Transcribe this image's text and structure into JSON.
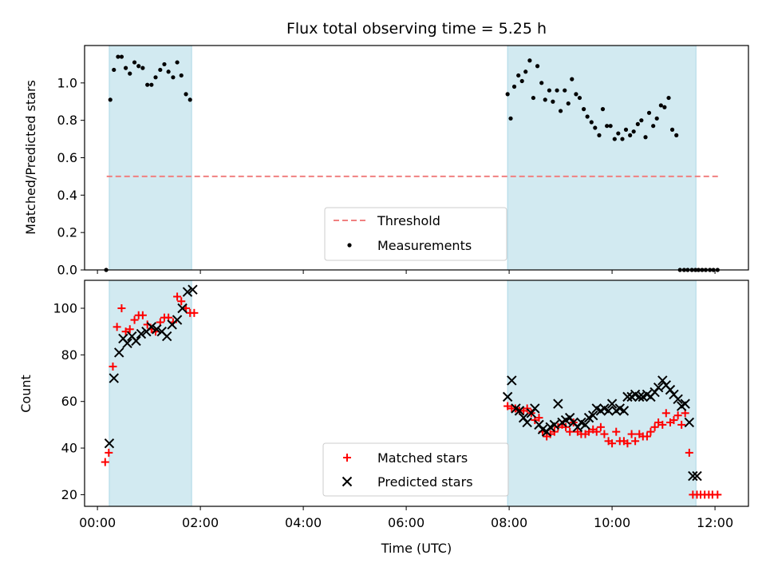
{
  "chart_data": [
    {
      "type": "scatter",
      "title": "Flux total observing time = 5.25 h",
      "xlabel": "",
      "ylabel": "Matched/Predicted stars",
      "xlim": [
        -0.25,
        12.65
      ],
      "ylim": [
        0,
        1.2
      ],
      "yticks": [
        0.0,
        0.2,
        0.4,
        0.6,
        0.8,
        1.0
      ],
      "ytick_labels": [
        "0.0",
        "0.2",
        "0.4",
        "0.6",
        "0.8",
        "1.0"
      ],
      "shaded_intervals": [
        [
          0.23,
          1.83
        ],
        [
          7.97,
          11.63
        ]
      ],
      "threshold": {
        "name": "Threshold",
        "y": 0.5,
        "x": [
          0.18,
          12.1
        ],
        "color": "#f08080"
      },
      "series": [
        {
          "name": "Measurements",
          "color": "#000000",
          "x": [
            0.17,
            0.25,
            0.32,
            0.4,
            0.47,
            0.55,
            0.63,
            0.72,
            0.8,
            0.88,
            0.97,
            1.05,
            1.13,
            1.22,
            1.3,
            1.38,
            1.47,
            1.55,
            1.63,
            1.72,
            1.8,
            7.97,
            8.03,
            8.1,
            8.18,
            8.25,
            8.32,
            8.4,
            8.47,
            8.55,
            8.63,
            8.7,
            8.78,
            8.85,
            8.93,
            9.0,
            9.08,
            9.15,
            9.22,
            9.3,
            9.37,
            9.45,
            9.52,
            9.6,
            9.67,
            9.75,
            9.82,
            9.9,
            9.97,
            10.05,
            10.12,
            10.2,
            10.27,
            10.35,
            10.42,
            10.5,
            10.57,
            10.65,
            10.72,
            10.8,
            10.87,
            10.95,
            11.02,
            11.1,
            11.17,
            11.25,
            11.32,
            11.4,
            11.47,
            11.55,
            11.62,
            11.68,
            11.75,
            11.82,
            11.9,
            11.97,
            12.05
          ],
          "y": [
            0.0,
            0.91,
            1.07,
            1.14,
            1.14,
            1.08,
            1.05,
            1.11,
            1.09,
            1.08,
            0.99,
            0.99,
            1.03,
            1.07,
            1.1,
            1.06,
            1.03,
            1.11,
            1.04,
            0.94,
            0.91,
            0.94,
            0.81,
            0.98,
            1.04,
            1.01,
            1.06,
            1.12,
            0.92,
            1.09,
            1.0,
            0.91,
            0.96,
            0.9,
            0.96,
            0.85,
            0.96,
            0.89,
            1.02,
            0.94,
            0.92,
            0.86,
            0.82,
            0.79,
            0.76,
            0.72,
            0.86,
            0.77,
            0.77,
            0.7,
            0.73,
            0.7,
            0.75,
            0.72,
            0.74,
            0.78,
            0.8,
            0.71,
            0.84,
            0.77,
            0.81,
            0.88,
            0.87,
            0.92,
            0.75,
            0.72,
            0.0,
            0.0,
            0.0,
            0.0,
            0.0,
            0.0,
            0.0,
            0.0,
            0.0,
            0.0,
            0.0
          ]
        }
      ],
      "legend": {
        "entries": [
          "Threshold",
          "Measurements"
        ],
        "position": "lower-center"
      }
    },
    {
      "type": "scatter",
      "title": "",
      "xlabel": "Time (UTC)",
      "ylabel": "Count",
      "xlim": [
        -0.25,
        12.65
      ],
      "ylim": [
        15,
        112
      ],
      "yticks": [
        20,
        40,
        60,
        80,
        100
      ],
      "ytick_labels": [
        "20",
        "40",
        "60",
        "80",
        "100"
      ],
      "xticks": [
        0,
        2,
        4,
        6,
        8,
        10,
        12
      ],
      "xtick_labels": [
        "00:00",
        "02:00",
        "04:00",
        "06:00",
        "08:00",
        "10:00",
        "12:00"
      ],
      "shaded_intervals": [
        [
          0.23,
          1.83
        ],
        [
          7.97,
          11.63
        ]
      ],
      "series": [
        {
          "name": "Matched stars",
          "marker": "plus",
          "color": "#ff0000",
          "x": [
            0.15,
            0.22,
            0.3,
            0.38,
            0.47,
            0.55,
            0.63,
            0.72,
            0.8,
            0.88,
            0.97,
            1.05,
            1.13,
            1.22,
            1.3,
            1.38,
            1.47,
            1.55,
            1.63,
            1.72,
            1.8,
            1.88,
            7.97,
            8.05,
            8.12,
            8.2,
            8.28,
            8.35,
            8.43,
            8.5,
            8.58,
            8.65,
            8.73,
            8.8,
            8.88,
            8.95,
            9.03,
            9.1,
            9.18,
            9.25,
            9.33,
            9.4,
            9.48,
            9.55,
            9.63,
            9.7,
            9.78,
            9.85,
            9.93,
            10.0,
            10.08,
            10.15,
            10.23,
            10.3,
            10.38,
            10.45,
            10.53,
            10.6,
            10.68,
            10.75,
            10.83,
            10.9,
            10.98,
            11.05,
            11.13,
            11.2,
            11.28,
            11.35,
            11.42,
            11.5,
            11.57,
            11.65,
            11.72,
            11.8,
            11.88,
            11.95,
            12.05
          ],
          "y": [
            34,
            38,
            75,
            92,
            100,
            90,
            91,
            95,
            97,
            97,
            93,
            91,
            90,
            94,
            96,
            96,
            94,
            105,
            103,
            100,
            98,
            98,
            58,
            57,
            57,
            56,
            56,
            57,
            55,
            52,
            53,
            47,
            45,
            46,
            47,
            49,
            50,
            49,
            47,
            51,
            47,
            46,
            46,
            47,
            48,
            47,
            49,
            46,
            43,
            42,
            47,
            43,
            43,
            42,
            46,
            43,
            46,
            45,
            45,
            47,
            49,
            51,
            50,
            55,
            51,
            52,
            54,
            50,
            55,
            38,
            20,
            20,
            20,
            20,
            20,
            20,
            20
          ]
        },
        {
          "name": "Predicted stars",
          "marker": "x",
          "color": "#000000",
          "x": [
            0.23,
            0.32,
            0.42,
            0.5,
            0.58,
            0.67,
            0.75,
            0.85,
            0.95,
            1.05,
            1.15,
            1.25,
            1.35,
            1.45,
            1.55,
            1.65,
            1.75,
            1.85,
            7.97,
            8.05,
            8.13,
            8.2,
            8.28,
            8.35,
            8.43,
            8.5,
            8.58,
            8.65,
            8.73,
            8.8,
            8.88,
            8.95,
            9.03,
            9.1,
            9.18,
            9.25,
            9.33,
            9.4,
            9.48,
            9.55,
            9.63,
            9.7,
            9.78,
            9.85,
            9.93,
            10.0,
            10.08,
            10.15,
            10.23,
            10.3,
            10.38,
            10.45,
            10.53,
            10.6,
            10.68,
            10.75,
            10.83,
            10.9,
            10.98,
            11.05,
            11.13,
            11.2,
            11.28,
            11.35,
            11.42,
            11.5,
            11.57,
            11.65
          ],
          "y": [
            42,
            70,
            81,
            87,
            85,
            88,
            86,
            89,
            90,
            92,
            91,
            90,
            88,
            93,
            95,
            100,
            107,
            108,
            62,
            69,
            57,
            56,
            53,
            51,
            55,
            57,
            50,
            48,
            47,
            49,
            50,
            59,
            51,
            52,
            53,
            51,
            49,
            51,
            50,
            53,
            54,
            57,
            56,
            57,
            56,
            59,
            56,
            57,
            56,
            62,
            62,
            63,
            62,
            62,
            63,
            62,
            64,
            66,
            69,
            67,
            65,
            63,
            61,
            58,
            59,
            51,
            28,
            28
          ]
        }
      ],
      "legend": {
        "entries": [
          "Matched stars",
          "Predicted stars"
        ],
        "position": "lower-center"
      }
    }
  ]
}
